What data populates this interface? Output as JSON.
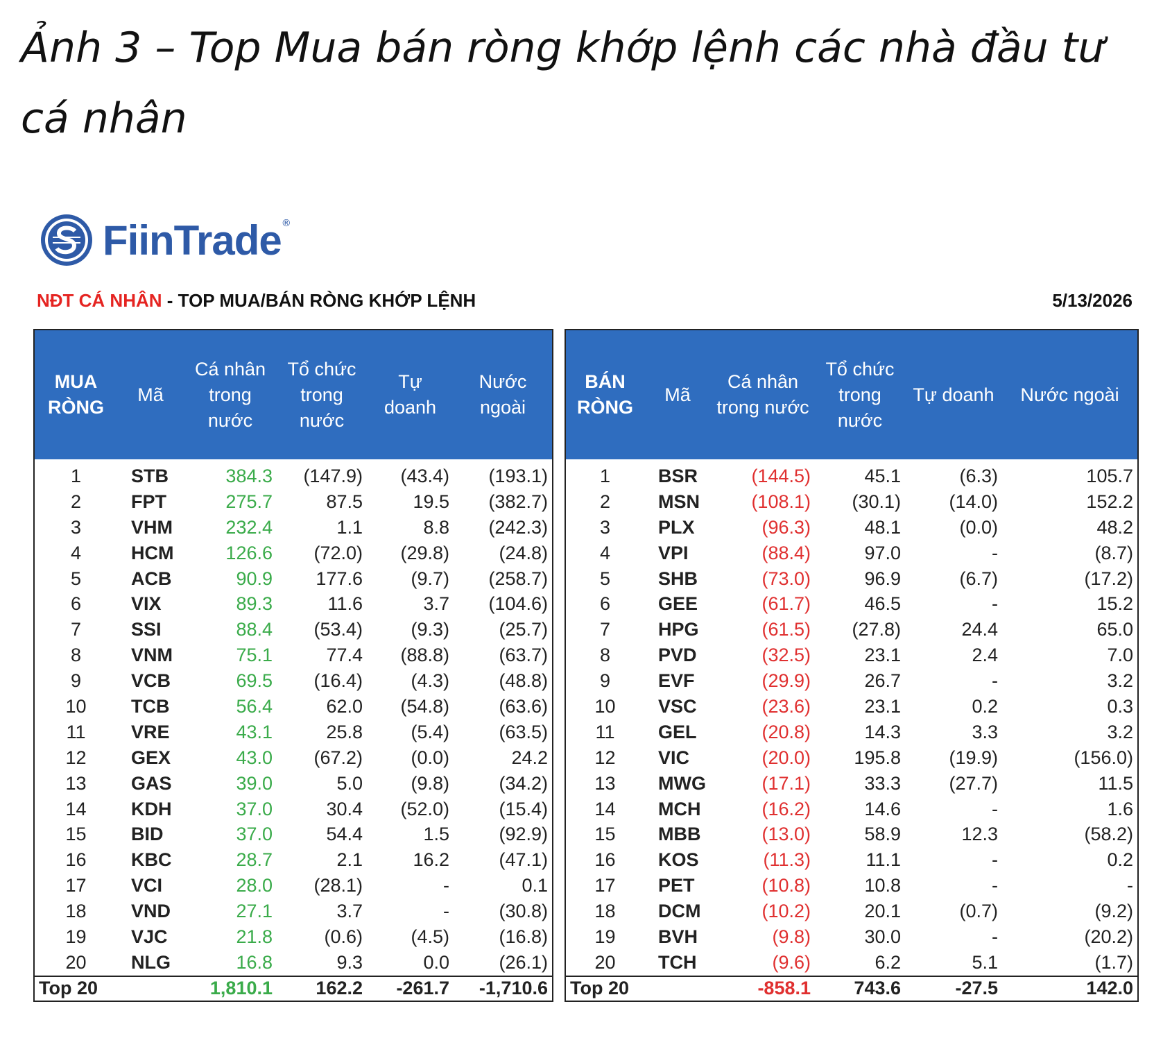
{
  "caption": "Ảnh 3 – Top Mua bán ròng khớp lệnh các nhà đầu tư cá nhân",
  "logo": {
    "name": "FiinTrade",
    "mark": "®"
  },
  "report": {
    "highlight": "NĐT CÁ NHÂN",
    "title": "- TOP MUA/BÁN RÒNG KHỚP LỆNH",
    "date": "5/13/2026"
  },
  "buy_table": {
    "headers": [
      "MUA RÒNG",
      "Mã",
      "Cá nhân trong nước",
      "Tổ chức trong nước",
      "Tự doanh",
      "Nước ngoài"
    ],
    "rows": [
      [
        "1",
        "STB",
        "384.3",
        "(147.9)",
        "(43.4)",
        "(193.1)"
      ],
      [
        "2",
        "FPT",
        "275.7",
        "87.5",
        "19.5",
        "(382.7)"
      ],
      [
        "3",
        "VHM",
        "232.4",
        "1.1",
        "8.8",
        "(242.3)"
      ],
      [
        "4",
        "HCM",
        "126.6",
        "(72.0)",
        "(29.8)",
        "(24.8)"
      ],
      [
        "5",
        "ACB",
        "90.9",
        "177.6",
        "(9.7)",
        "(258.7)"
      ],
      [
        "6",
        "VIX",
        "89.3",
        "11.6",
        "3.7",
        "(104.6)"
      ],
      [
        "7",
        "SSI",
        "88.4",
        "(53.4)",
        "(9.3)",
        "(25.7)"
      ],
      [
        "8",
        "VNM",
        "75.1",
        "77.4",
        "(88.8)",
        "(63.7)"
      ],
      [
        "9",
        "VCB",
        "69.5",
        "(16.4)",
        "(4.3)",
        "(48.8)"
      ],
      [
        "10",
        "TCB",
        "56.4",
        "62.0",
        "(54.8)",
        "(63.6)"
      ],
      [
        "11",
        "VRE",
        "43.1",
        "25.8",
        "(5.4)",
        "(63.5)"
      ],
      [
        "12",
        "GEX",
        "43.0",
        "(67.2)",
        "(0.0)",
        "24.2"
      ],
      [
        "13",
        "GAS",
        "39.0",
        "5.0",
        "(9.8)",
        "(34.2)"
      ],
      [
        "14",
        "KDH",
        "37.0",
        "30.4",
        "(52.0)",
        "(15.4)"
      ],
      [
        "15",
        "BID",
        "37.0",
        "54.4",
        "1.5",
        "(92.9)"
      ],
      [
        "16",
        "KBC",
        "28.7",
        "2.1",
        "16.2",
        "(47.1)"
      ],
      [
        "17",
        "VCI",
        "28.0",
        "(28.1)",
        "-",
        "0.1"
      ],
      [
        "18",
        "VND",
        "27.1",
        "3.7",
        "-",
        "(30.8)"
      ],
      [
        "19",
        "VJC",
        "21.8",
        "(0.6)",
        "(4.5)",
        "(16.8)"
      ],
      [
        "20",
        "NLG",
        "16.8",
        "9.3",
        "0.0",
        "(26.1)"
      ]
    ],
    "total": [
      "Top 20",
      "1,810.1",
      "162.2",
      "-261.7",
      "-1,710.6"
    ]
  },
  "sell_table": {
    "headers": [
      "BÁN RÒNG",
      "Mã",
      "Cá nhân trong nước",
      "Tổ chức trong nước",
      "Tự doanh",
      "Nước ngoài"
    ],
    "rows": [
      [
        "1",
        "BSR",
        "(144.5)",
        "45.1",
        "(6.3)",
        "105.7"
      ],
      [
        "2",
        "MSN",
        "(108.1)",
        "(30.1)",
        "(14.0)",
        "152.2"
      ],
      [
        "3",
        "PLX",
        "(96.3)",
        "48.1",
        "(0.0)",
        "48.2"
      ],
      [
        "4",
        "VPI",
        "(88.4)",
        "97.0",
        "-",
        "(8.7)"
      ],
      [
        "5",
        "SHB",
        "(73.0)",
        "96.9",
        "(6.7)",
        "(17.2)"
      ],
      [
        "6",
        "GEE",
        "(61.7)",
        "46.5",
        "-",
        "15.2"
      ],
      [
        "7",
        "HPG",
        "(61.5)",
        "(27.8)",
        "24.4",
        "65.0"
      ],
      [
        "8",
        "PVD",
        "(32.5)",
        "23.1",
        "2.4",
        "7.0"
      ],
      [
        "9",
        "EVF",
        "(29.9)",
        "26.7",
        "-",
        "3.2"
      ],
      [
        "10",
        "VSC",
        "(23.6)",
        "23.1",
        "0.2",
        "0.3"
      ],
      [
        "11",
        "GEL",
        "(20.8)",
        "14.3",
        "3.3",
        "3.2"
      ],
      [
        "12",
        "VIC",
        "(20.0)",
        "195.8",
        "(19.9)",
        "(156.0)"
      ],
      [
        "13",
        "MWG",
        "(17.1)",
        "33.3",
        "(27.7)",
        "11.5"
      ],
      [
        "14",
        "MCH",
        "(16.2)",
        "14.6",
        "-",
        "1.6"
      ],
      [
        "15",
        "MBB",
        "(13.0)",
        "58.9",
        "12.3",
        "(58.2)"
      ],
      [
        "16",
        "KOS",
        "(11.3)",
        "11.1",
        "-",
        "0.2"
      ],
      [
        "17",
        "PET",
        "(10.8)",
        "10.8",
        "-",
        "-"
      ],
      [
        "18",
        "DCM",
        "(10.2)",
        "20.1",
        "(0.7)",
        "(9.2)"
      ],
      [
        "19",
        "BVH",
        "(9.8)",
        "30.0",
        "-",
        "(20.2)"
      ],
      [
        "20",
        "TCH",
        "(9.6)",
        "6.2",
        "5.1",
        "(1.7)"
      ]
    ],
    "total": [
      "Top 20",
      "-858.1",
      "743.6",
      "-27.5",
      "142.0"
    ]
  }
}
